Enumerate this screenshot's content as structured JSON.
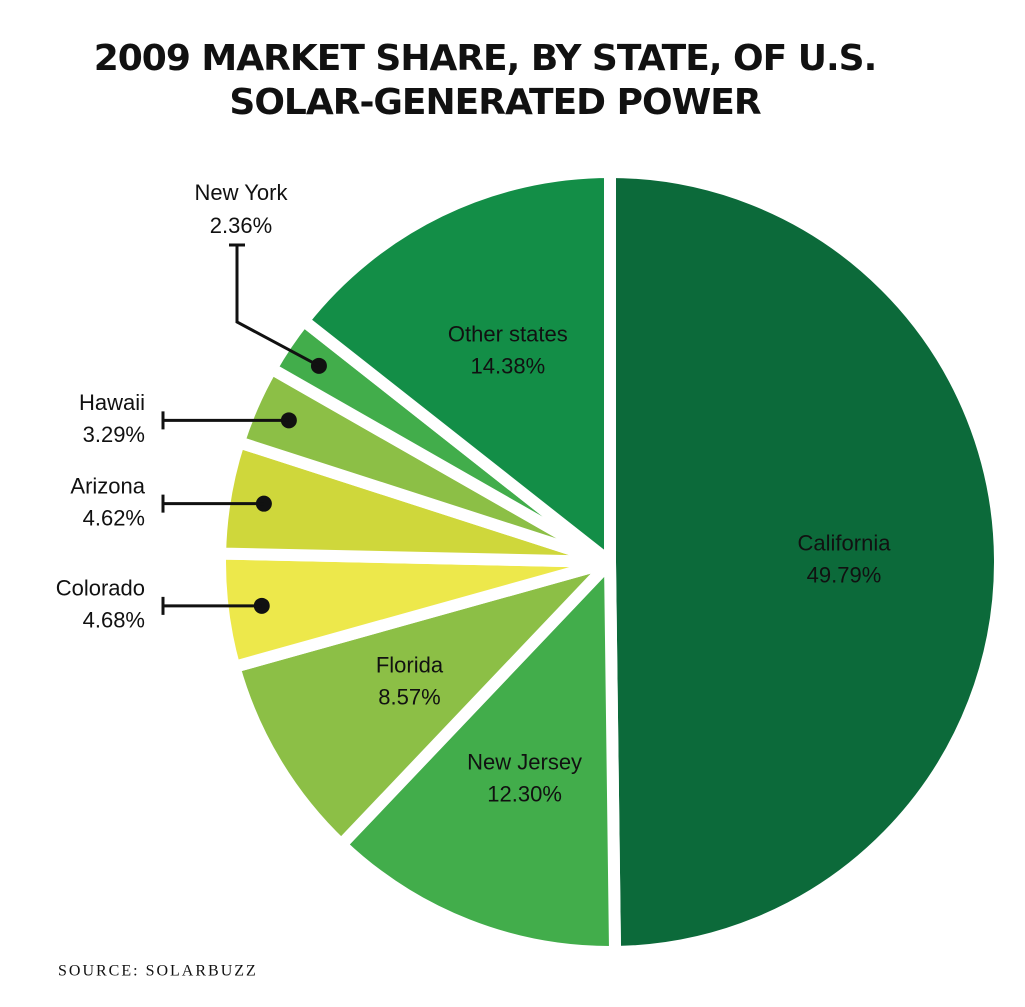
{
  "chart_data": {
    "type": "pie",
    "title": "2009 MARKET SHARE, BY STATE, OF U.S. SOLAR-GENERATED POWER",
    "source": "SOURCE: SOLARBUZZ",
    "categories": [
      "California",
      "New Jersey",
      "Florida",
      "Colorado",
      "Arizona",
      "Hawaii",
      "New York",
      "Other states"
    ],
    "values": [
      49.79,
      12.3,
      8.57,
      4.68,
      4.62,
      3.29,
      2.36,
      14.38
    ],
    "value_labels": [
      "49.79%",
      "12.30%",
      "8.57%",
      "4.68%",
      "4.62%",
      "3.29%",
      "2.36%",
      "14.38%"
    ],
    "colors": [
      "#0c6a3a",
      "#42ad4b",
      "#8cbf46",
      "#ede84b",
      "#cfd73b",
      "#8cbf46",
      "#42ad4b",
      "#138e47"
    ]
  }
}
